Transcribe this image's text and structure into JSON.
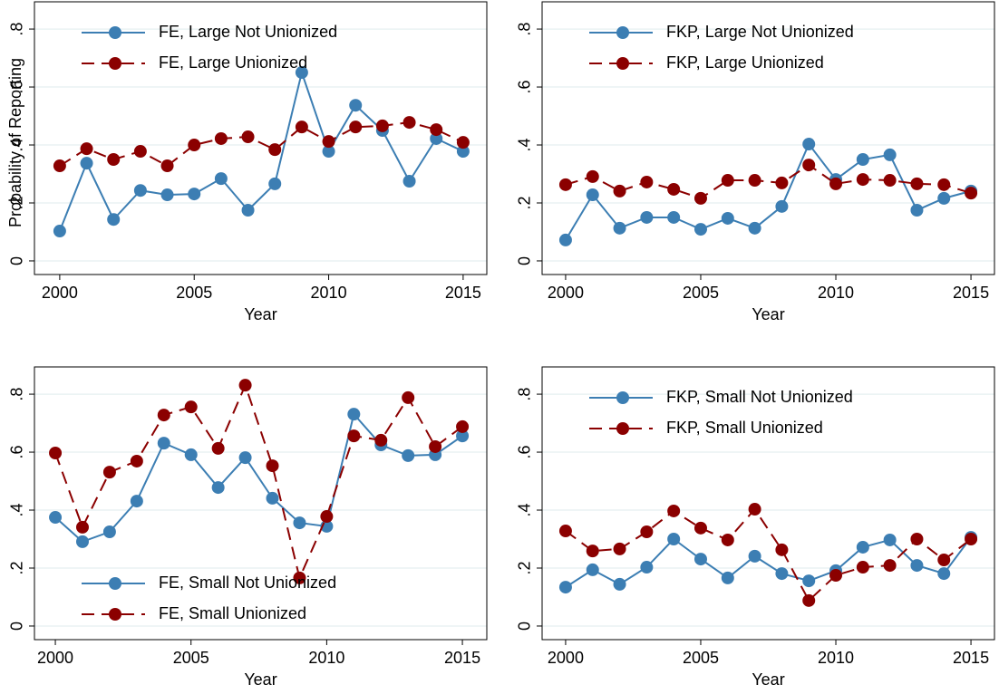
{
  "chart_data": [
    {
      "type": "line",
      "x": [
        2000,
        2001,
        2002,
        2003,
        2004,
        2005,
        2006,
        2007,
        2008,
        2009,
        2010,
        2011,
        2012,
        2013,
        2014,
        2015
      ],
      "series": [
        {
          "name": "FE, Large Not Unionized",
          "color": "#3c7eb3",
          "line_style": "solid",
          "values": [
            0.103,
            0.337,
            0.143,
            0.243,
            0.228,
            0.231,
            0.284,
            0.175,
            0.266,
            0.65,
            0.378,
            0.537,
            0.45,
            0.275,
            0.422,
            0.378
          ]
        },
        {
          "name": "FE, Large Unionized",
          "color": "#8b0000",
          "line_style": "dashed",
          "values": [
            0.328,
            0.387,
            0.35,
            0.378,
            0.328,
            0.4,
            0.422,
            0.428,
            0.384,
            0.462,
            0.412,
            0.462,
            0.466,
            0.478,
            0.453,
            0.409
          ]
        }
      ],
      "xlim": [
        1999.06,
        2015.88
      ],
      "ylim": [
        -0.047,
        0.894
      ],
      "xticks": [
        2000,
        2005,
        2010,
        2015
      ],
      "yticks": [
        0,
        {
          "value": 0.2,
          "label": ".2"
        },
        {
          "value": 0.4,
          "label": ".4"
        },
        {
          "value": 0.6,
          "label": ".6"
        },
        {
          "value": 0.8,
          "label": ".8"
        }
      ],
      "xlabel": "Year",
      "ylabel": "Probability of Reporting",
      "grid": true,
      "legend": "upper left"
    },
    {
      "type": "line",
      "x": [
        2000,
        2001,
        2002,
        2003,
        2004,
        2005,
        2006,
        2007,
        2008,
        2009,
        2010,
        2011,
        2012,
        2013,
        2014,
        2015
      ],
      "series": [
        {
          "name": "FKP, Large Not Unionized",
          "color": "#3c7eb3",
          "line_style": "solid",
          "values": [
            0.072,
            0.228,
            0.113,
            0.15,
            0.15,
            0.109,
            0.147,
            0.113,
            0.188,
            0.403,
            0.281,
            0.35,
            0.366,
            0.175,
            0.216,
            0.241
          ]
        },
        {
          "name": "FKP, Large Unionized",
          "color": "#8b0000",
          "line_style": "dashed",
          "values": [
            0.263,
            0.291,
            0.241,
            0.272,
            0.247,
            0.216,
            0.278,
            0.278,
            0.269,
            0.331,
            0.266,
            0.281,
            0.278,
            0.266,
            0.263,
            0.234
          ]
        }
      ],
      "xlim": [
        1999.13,
        2015.87
      ],
      "ylim": [
        -0.047,
        0.894
      ],
      "xticks": [
        2000,
        2005,
        2010,
        2015
      ],
      "yticks": [
        0,
        {
          "value": 0.2,
          "label": ".2"
        },
        {
          "value": 0.4,
          "label": ".4"
        },
        {
          "value": 0.6,
          "label": ".6"
        },
        {
          "value": 0.8,
          "label": ".8"
        }
      ],
      "xlabel": "Year",
      "grid": true,
      "legend": "upper left"
    },
    {
      "type": "line",
      "x": [
        2000,
        2001,
        2002,
        2003,
        2004,
        2005,
        2006,
        2007,
        2008,
        2009,
        2010,
        2011,
        2012,
        2013,
        2014,
        2015
      ],
      "series": [
        {
          "name": "FE, Small Not Unionized",
          "color": "#3c7eb3",
          "line_style": "solid",
          "values": [
            0.375,
            0.291,
            0.325,
            0.431,
            0.631,
            0.591,
            0.478,
            0.581,
            0.441,
            0.356,
            0.344,
            0.731,
            0.625,
            0.588,
            0.591,
            0.656
          ]
        },
        {
          "name": "FE, Small Unionized",
          "color": "#8b0000",
          "line_style": "dashed",
          "values": [
            0.597,
            0.341,
            0.531,
            0.569,
            0.728,
            0.756,
            0.613,
            0.831,
            0.553,
            0.166,
            0.378,
            0.656,
            0.641,
            0.788,
            0.619,
            0.688
          ]
        }
      ],
      "xlim": [
        1999.23,
        2015.9
      ],
      "ylim": [
        -0.047,
        0.894
      ],
      "xticks": [
        2000,
        2005,
        2010,
        2015
      ],
      "yticks": [
        0,
        {
          "value": 0.2,
          "label": ".2"
        },
        {
          "value": 0.4,
          "label": ".4"
        },
        {
          "value": 0.6,
          "label": ".6"
        },
        {
          "value": 0.8,
          "label": ".8"
        }
      ],
      "xlabel": "Year",
      "grid": true,
      "legend": "lower left"
    },
    {
      "type": "line",
      "x": [
        2000,
        2001,
        2002,
        2003,
        2004,
        2005,
        2006,
        2007,
        2008,
        2009,
        2010,
        2011,
        2012,
        2013,
        2014,
        2015
      ],
      "series": [
        {
          "name": "FKP, Small Not Unionized",
          "color": "#3c7eb3",
          "line_style": "solid",
          "values": [
            0.134,
            0.194,
            0.144,
            0.203,
            0.3,
            0.231,
            0.166,
            0.241,
            0.181,
            0.156,
            0.191,
            0.272,
            0.297,
            0.209,
            0.181,
            0.306
          ]
        },
        {
          "name": "FKP, Small Unionized",
          "color": "#8b0000",
          "line_style": "dashed",
          "values": [
            0.328,
            0.259,
            0.266,
            0.325,
            0.397,
            0.338,
            0.297,
            0.403,
            0.263,
            0.088,
            0.175,
            0.203,
            0.209,
            0.3,
            0.228,
            0.3
          ]
        }
      ],
      "xlim": [
        1999.13,
        2015.87
      ],
      "ylim": [
        -0.047,
        0.894
      ],
      "xticks": [
        2000,
        2005,
        2010,
        2015
      ],
      "yticks": [
        0,
        {
          "value": 0.2,
          "label": ".2"
        },
        {
          "value": 0.4,
          "label": ".4"
        },
        {
          "value": 0.6,
          "label": ".6"
        },
        {
          "value": 0.8,
          "label": ".8"
        }
      ],
      "xlabel": "Year",
      "grid": true,
      "legend": "upper left"
    }
  ]
}
